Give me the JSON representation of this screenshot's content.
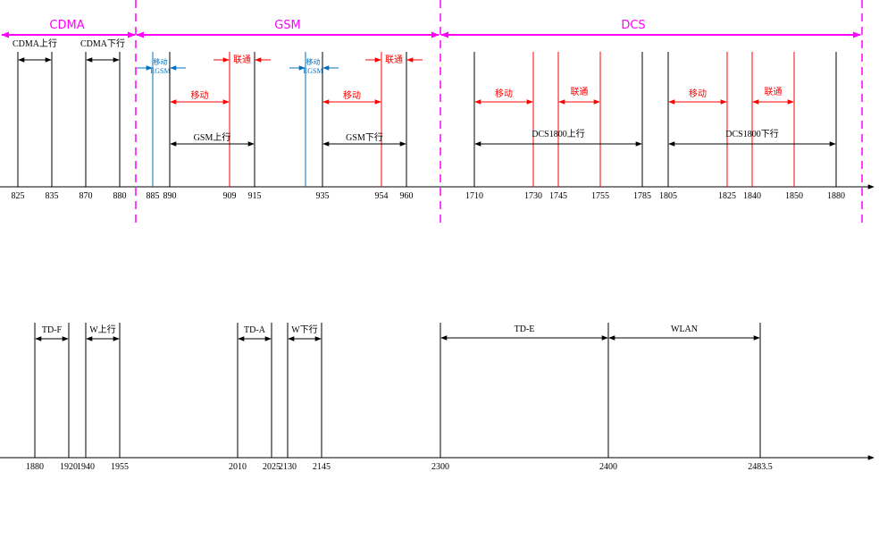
{
  "colors": {
    "axis": "#000000",
    "header": "#ff00ff",
    "carrier": "#ff0000",
    "egsm": "#0070c0"
  },
  "header_bands": [
    {
      "label": "CDMA"
    },
    {
      "label": "GSM"
    },
    {
      "label": "DCS"
    }
  ],
  "top_axis_ticks": [
    {
      "label": "825",
      "value": 825
    },
    {
      "label": "835",
      "value": 835
    },
    {
      "label": "870",
      "value": 870
    },
    {
      "label": "880",
      "value": 880
    },
    {
      "label": "885",
      "value": 885
    },
    {
      "label": "890",
      "value": 890
    },
    {
      "label": "909",
      "value": 909
    },
    {
      "label": "915",
      "value": 915
    },
    {
      "label": "935",
      "value": 935
    },
    {
      "label": "954",
      "value": 954
    },
    {
      "label": "960",
      "value": 960
    },
    {
      "label": "1710",
      "value": 1710
    },
    {
      "label": "1730",
      "value": 1730
    },
    {
      "label": "1745",
      "value": 1745
    },
    {
      "label": "1755",
      "value": 1755
    },
    {
      "label": "1785",
      "value": 1785
    },
    {
      "label": "1805",
      "value": 1805
    },
    {
      "label": "1825",
      "value": 1825
    },
    {
      "label": "1840",
      "value": 1840
    },
    {
      "label": "1850",
      "value": 1850
    },
    {
      "label": "1880",
      "value": 1880
    }
  ],
  "top_bands": [
    {
      "label": "CDMA上行",
      "start": 825,
      "end": 835,
      "color": "black"
    },
    {
      "label": "CDMA下行",
      "start": 870,
      "end": 880,
      "color": "black"
    },
    {
      "label": "GSM上行",
      "start": 890,
      "end": 915,
      "color": "black"
    },
    {
      "label": "GSM下行",
      "start": 935,
      "end": 960,
      "color": "black"
    },
    {
      "label": "移动",
      "start": 890,
      "end": 909,
      "color": "red"
    },
    {
      "label": "移动",
      "start": 935,
      "end": 954,
      "color": "red"
    },
    {
      "label": "联通",
      "start": 909,
      "end": 915,
      "color": "red",
      "style": "inward"
    },
    {
      "label": "联通",
      "start": 954,
      "end": 960,
      "color": "red",
      "style": "inward"
    },
    {
      "label": "移动",
      "start": 885,
      "end": 890,
      "color": "blue",
      "style": "inward",
      "sublabel": "EGSM"
    },
    {
      "label": "移动",
      "start": 930,
      "end": 935,
      "color": "blue",
      "style": "inward",
      "sublabel": "EGSM"
    },
    {
      "label": "DCS1800上行",
      "start": 1710,
      "end": 1785,
      "color": "black"
    },
    {
      "label": "DCS1800下行",
      "start": 1805,
      "end": 1880,
      "color": "black"
    },
    {
      "label": "移动",
      "start": 1710,
      "end": 1730,
      "color": "red"
    },
    {
      "label": "联通",
      "start": 1745,
      "end": 1755,
      "color": "red"
    },
    {
      "label": "移动",
      "start": 1805,
      "end": 1825,
      "color": "red"
    },
    {
      "label": "联通",
      "start": 1840,
      "end": 1850,
      "color": "red"
    }
  ],
  "bottom_axis_ticks": [
    {
      "label": "1880",
      "value": 1880
    },
    {
      "label": "1920",
      "value": 1920
    },
    {
      "label": "1940",
      "value": 1940
    },
    {
      "label": "1955",
      "value": 1955
    },
    {
      "label": "2010",
      "value": 2010
    },
    {
      "label": "2025",
      "value": 2025
    },
    {
      "label": "2130",
      "value": 2130
    },
    {
      "label": "2145",
      "value": 2145
    },
    {
      "label": "2300",
      "value": 2300
    },
    {
      "label": "2400",
      "value": 2400
    },
    {
      "label": "2483.5",
      "value": 2483.5
    }
  ],
  "bottom_bands": [
    {
      "label": "TD-F",
      "start": 1880,
      "end": 1920
    },
    {
      "label": "W上行",
      "start": 1940,
      "end": 1955
    },
    {
      "label": "TD-A",
      "start": 2010,
      "end": 2025
    },
    {
      "label": "W下行",
      "start": 2130,
      "end": 2145
    },
    {
      "label": "TD-E",
      "start": 2300,
      "end": 2400
    },
    {
      "label": "WLAN",
      "start": 2400,
      "end": 2483.5
    }
  ]
}
